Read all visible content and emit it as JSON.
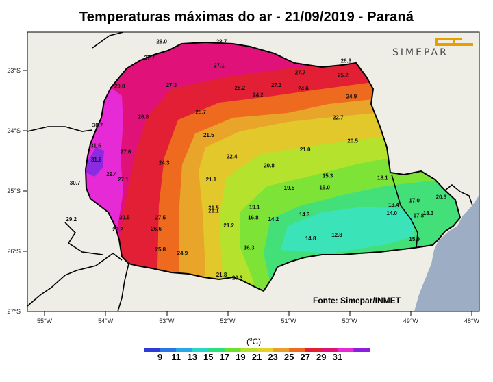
{
  "title": "Temperaturas máximas do ar - 21/09/2019 - Paraná",
  "source": "Fonte: Simepar/INMET",
  "logo_text": "SIMEPAR",
  "unit": "oC",
  "colors": {
    "land": "#eeeee6",
    "ocean": "#9daec4",
    "c13": "#3ae3b8",
    "c15": "#43e07a",
    "c17": "#7ee337",
    "c19": "#b5e22c",
    "c21": "#e2c82a",
    "c23": "#e8a52a",
    "c25": "#ee6a1f",
    "c27": "#e21f35",
    "c29": "#e0127a",
    "c31": "#e62ad6",
    "c33": "#8a2be2",
    "logo": "#e8a000"
  },
  "colorbar": {
    "labels": [
      "9",
      "11",
      "13",
      "15",
      "17",
      "19",
      "21",
      "23",
      "25",
      "27",
      "29",
      "31"
    ],
    "colors": [
      "#2e3bd6",
      "#2a76e6",
      "#2aa8e6",
      "#2ad6cc",
      "#2ae07a",
      "#6ce02a",
      "#b4e02a",
      "#e6d02a",
      "#e8a02a",
      "#ee6a1f",
      "#e21f35",
      "#e0127a",
      "#e62ad6",
      "#8a1fe0"
    ]
  },
  "axes": {
    "x_ticks": [
      "55°W",
      "54°W",
      "53°W",
      "52°W",
      "51°W",
      "50°W",
      "49°W",
      "48°W"
    ],
    "y_ticks": [
      "23°S",
      "24°S",
      "25°S",
      "26°S",
      "27°S"
    ]
  },
  "map_data": {
    "region": "Paraná",
    "date": "21/09/2019",
    "labels": [
      {
        "v": "28.0",
        "lon": -53.08,
        "lat": -22.55
      },
      {
        "v": "28.7",
        "lon": -52.1,
        "lat": -22.55
      },
      {
        "v": "27.7",
        "lon": -53.28,
        "lat": -22.82
      },
      {
        "v": "27.1",
        "lon": -52.14,
        "lat": -22.95
      },
      {
        "v": "26.9",
        "lon": -50.06,
        "lat": -22.87
      },
      {
        "v": "27.7",
        "lon": -50.81,
        "lat": -23.06
      },
      {
        "v": "25.2",
        "lon": -50.11,
        "lat": -23.11
      },
      {
        "v": "29.0",
        "lon": -53.77,
        "lat": -23.29
      },
      {
        "v": "27.3",
        "lon": -52.92,
        "lat": -23.27
      },
      {
        "v": "26.2",
        "lon": -51.8,
        "lat": -23.32
      },
      {
        "v": "27.3",
        "lon": -51.2,
        "lat": -23.27
      },
      {
        "v": "24.6",
        "lon": -50.76,
        "lat": -23.33
      },
      {
        "v": "24.2",
        "lon": -51.5,
        "lat": -23.44
      },
      {
        "v": "24.9",
        "lon": -49.97,
        "lat": -23.46
      },
      {
        "v": "26.8",
        "lon": -53.38,
        "lat": -23.8
      },
      {
        "v": "25.7",
        "lon": -52.44,
        "lat": -23.72
      },
      {
        "v": "22.7",
        "lon": -50.19,
        "lat": -23.81
      },
      {
        "v": "30.7",
        "lon": -54.13,
        "lat": -23.94
      },
      {
        "v": "21.5",
        "lon": -52.31,
        "lat": -24.1
      },
      {
        "v": "31.6",
        "lon": -54.16,
        "lat": -24.28
      },
      {
        "v": "27.6",
        "lon": -53.67,
        "lat": -24.38
      },
      {
        "v": "22.4",
        "lon": -51.93,
        "lat": -24.46
      },
      {
        "v": "21.0",
        "lon": -50.73,
        "lat": -24.34
      },
      {
        "v": "20.5",
        "lon": -49.95,
        "lat": -24.2
      },
      {
        "v": "31.6",
        "lon": -54.15,
        "lat": -24.51
      },
      {
        "v": "24.3",
        "lon": -53.04,
        "lat": -24.56
      },
      {
        "v": "20.8",
        "lon": -51.32,
        "lat": -24.61
      },
      {
        "v": "29.4",
        "lon": -53.9,
        "lat": -24.75
      },
      {
        "v": "27.1",
        "lon": -53.71,
        "lat": -24.84
      },
      {
        "v": "21.1",
        "lon": -52.27,
        "lat": -24.84
      },
      {
        "v": "15.3",
        "lon": -50.36,
        "lat": -24.78
      },
      {
        "v": "18.1",
        "lon": -49.46,
        "lat": -24.81
      },
      {
        "v": "30.7",
        "lon": -54.5,
        "lat": -24.9
      },
      {
        "v": "19.5",
        "lon": -50.99,
        "lat": -24.98
      },
      {
        "v": "15.0",
        "lon": -50.41,
        "lat": -24.97
      },
      {
        "v": "17.0",
        "lon": -48.94,
        "lat": -25.19
      },
      {
        "v": "20.3",
        "lon": -48.5,
        "lat": -25.13
      },
      {
        "v": "13.4",
        "lon": -49.28,
        "lat": -25.26
      },
      {
        "v": "21.5",
        "lon": -52.23,
        "lat": -25.31
      },
      {
        "v": "21.1",
        "lon": -52.23,
        "lat": -25.36
      },
      {
        "v": "19.1",
        "lon": -51.56,
        "lat": -25.3
      },
      {
        "v": "14.0",
        "lon": -49.31,
        "lat": -25.4
      },
      {
        "v": "18.3",
        "lon": -48.71,
        "lat": -25.4
      },
      {
        "v": "17.8",
        "lon": -48.87,
        "lat": -25.44
      },
      {
        "v": "30.5",
        "lon": -53.69,
        "lat": -25.47
      },
      {
        "v": "27.5",
        "lon": -53.1,
        "lat": -25.47
      },
      {
        "v": "16.8",
        "lon": -51.58,
        "lat": -25.47
      },
      {
        "v": "14.3",
        "lon": -50.74,
        "lat": -25.42
      },
      {
        "v": "14.2",
        "lon": -51.25,
        "lat": -25.5
      },
      {
        "v": "29.2",
        "lon": -54.56,
        "lat": -25.5
      },
      {
        "v": "21.2",
        "lon": -51.98,
        "lat": -25.6
      },
      {
        "v": "28.2",
        "lon": -53.8,
        "lat": -25.67
      },
      {
        "v": "26.6",
        "lon": -53.17,
        "lat": -25.66
      },
      {
        "v": "12.8",
        "lon": -50.21,
        "lat": -25.76
      },
      {
        "v": "14.8",
        "lon": -50.64,
        "lat": -25.82
      },
      {
        "v": "15.9",
        "lon": -48.94,
        "lat": -25.83
      },
      {
        "v": "16.3",
        "lon": -51.65,
        "lat": -25.97
      },
      {
        "v": "25.8",
        "lon": -53.1,
        "lat": -26.0
      },
      {
        "v": "24.9",
        "lon": -52.74,
        "lat": -26.06
      },
      {
        "v": "21.8",
        "lon": -52.1,
        "lat": -26.42
      },
      {
        "v": "20.3",
        "lon": -51.84,
        "lat": -26.47
      }
    ]
  }
}
